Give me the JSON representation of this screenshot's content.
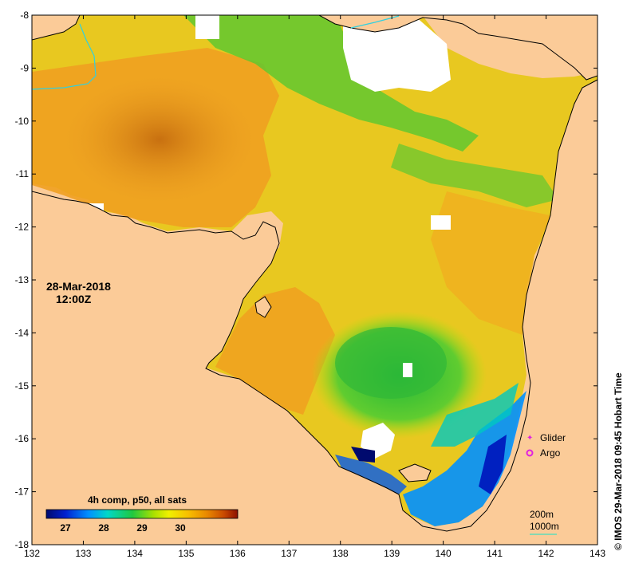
{
  "map": {
    "date": "28-Mar-2018",
    "time": "12:00Z",
    "credit": "© IMOS 29-Mar-2018 09:45 Hobart Time",
    "x_ticks": [
      "132",
      "133",
      "134",
      "135",
      "136",
      "137",
      "138",
      "139",
      "140",
      "141",
      "142",
      "143"
    ],
    "y_ticks": [
      "-8",
      "-9",
      "-10",
      "-11",
      "-12",
      "-13",
      "-14",
      "-15",
      "-16",
      "-17",
      "-18"
    ],
    "lon_range": [
      132,
      143
    ],
    "lat_range": [
      -18,
      -8
    ],
    "colorbar": {
      "title": "4h comp, p50, all sats",
      "ticks": [
        "27",
        "28",
        "29",
        "30"
      ],
      "colors": [
        "#000a6e",
        "#0020d0",
        "#0090ff",
        "#00d8c8",
        "#20c840",
        "#a8e000",
        "#f0f000",
        "#f8c000",
        "#e88800",
        "#c84800",
        "#8c1000"
      ]
    },
    "legend": {
      "glider_label": "Glider",
      "argo_label": "Argo",
      "glider_color": "#e020e0",
      "argo_color": "#e020e0",
      "iso_200_label": "200m",
      "iso_1000_label": "1000m",
      "iso_color": "#40e0c0"
    },
    "colors": {
      "land": "#fbcb98",
      "no_data": "#ffffff",
      "coast": "#000000"
    }
  }
}
